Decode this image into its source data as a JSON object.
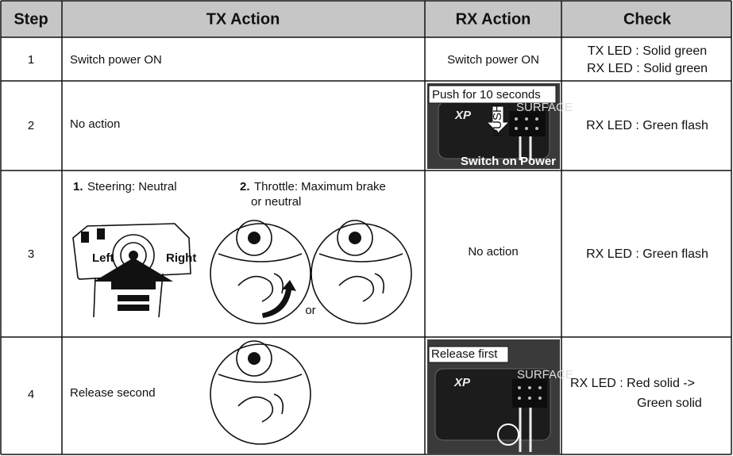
{
  "table": {
    "header": [
      "Step",
      "TX Action",
      "RX Action",
      "Check"
    ],
    "rows": [
      {
        "step": "1",
        "tx": "Switch power ON",
        "rx": "Switch power ON",
        "check": [
          "TX LED : Solid green",
          "RX LED : Solid green"
        ]
      },
      {
        "step": "2",
        "tx": "No action",
        "rx_figure": {
          "caption": "Push for 10 seconds",
          "arrow": "PUSH",
          "footer": "Switch on Power",
          "brand": "XP",
          "panel": "SURFACE"
        },
        "check": [
          "RX LED : Green flash"
        ]
      },
      {
        "step": "3",
        "tx_figure": {
          "steps": [
            {
              "number": "1.",
              "lines": [
                "Steering: Neutral"
              ]
            },
            {
              "number": "2.",
              "lines": [
                "Throttle: Maximum brake",
                "or neutral"
              ]
            }
          ],
          "left": "Left",
          "right": "Right",
          "or": "or"
        },
        "rx": "No action",
        "check": [
          "RX LED : Green flash"
        ]
      },
      {
        "step": "4",
        "tx": "Release second",
        "rx_figure": {
          "caption": "Release first",
          "brand": "XP",
          "panel": "SURFACE"
        },
        "check": [
          "RX LED : Red solid ->",
          "Green solid"
        ]
      }
    ]
  }
}
